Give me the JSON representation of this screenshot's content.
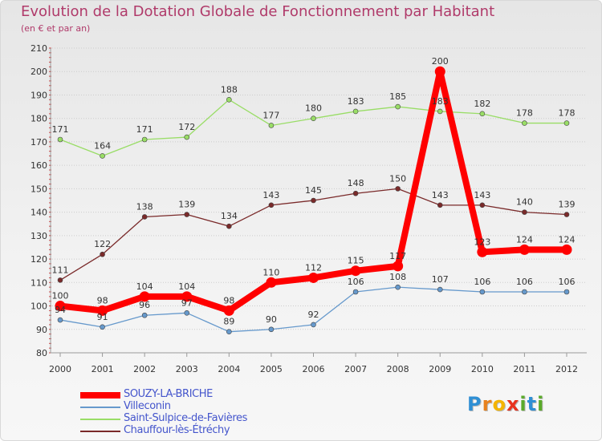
{
  "header": {
    "title": "Evolution de la Dotation Globale de Fonctionnement par Habitant",
    "subtitle": "(en € et par an)"
  },
  "logo": {
    "text": "Proxiti",
    "letter_colors": [
      "#2f8fd4",
      "#e8821e",
      "#f4b400",
      "#e8321e",
      "#5aaa2a",
      "#2f8fd4",
      "#5aaa2a"
    ]
  },
  "colors": {
    "title": "#b03a6a",
    "axis_text": "#333333",
    "grid": "#cccccc",
    "legend_text": "#4455cc"
  },
  "chart_data": {
    "type": "line",
    "xlabel": "",
    "ylabel": "",
    "x": [
      "2000",
      "2001",
      "2002",
      "2003",
      "2004",
      "2005",
      "2006",
      "2007",
      "2008",
      "2009",
      "2010",
      "2011",
      "2012"
    ],
    "ylim": [
      80,
      210
    ],
    "yticks": [
      80,
      90,
      100,
      110,
      120,
      130,
      140,
      150,
      160,
      170,
      180,
      190,
      200,
      210
    ],
    "grid": "horizontal",
    "legend_position": "bottom",
    "series": [
      {
        "name": "SOUZY-LA-BRICHE",
        "color": "#ff0000",
        "emphasis": true,
        "values": [
          100,
          98,
          104,
          104,
          98,
          110,
          112,
          115,
          117,
          200,
          123,
          124,
          124
        ],
        "labels": [
          "100",
          "98",
          "104",
          "104",
          "98",
          "110",
          "112",
          "115",
          "117",
          "200",
          "123",
          "124",
          "124"
        ]
      },
      {
        "name": "Villeconin",
        "color": "#6699cc",
        "emphasis": false,
        "values": [
          94,
          91,
          96,
          97,
          89,
          90,
          92,
          106,
          108,
          107,
          106,
          106,
          106
        ],
        "labels": [
          "94",
          "91",
          "96",
          "97",
          "89",
          "90",
          "92",
          "106",
          "108",
          "107",
          "106",
          "106",
          "106"
        ]
      },
      {
        "name": "Saint-Sulpice-de-Favières",
        "color": "#99dd66",
        "emphasis": false,
        "values": [
          171,
          164,
          171,
          172,
          188,
          177,
          180,
          183,
          185,
          183,
          182,
          178,
          178
        ],
        "labels": [
          "171",
          "164",
          "171",
          "172",
          "188",
          "177",
          "180",
          "183",
          "185",
          "183",
          "182",
          "178",
          "178"
        ]
      },
      {
        "name": "Chauffour-lès-Étréchy",
        "color": "#7a2a2a",
        "emphasis": false,
        "values": [
          111,
          122,
          138,
          139,
          134,
          143,
          145,
          148,
          150,
          143,
          143,
          140,
          139
        ],
        "labels": [
          "111",
          "122",
          "138",
          "139",
          "134",
          "143",
          "145",
          "148",
          "150",
          "143",
          "143",
          "140",
          "139"
        ]
      }
    ]
  }
}
